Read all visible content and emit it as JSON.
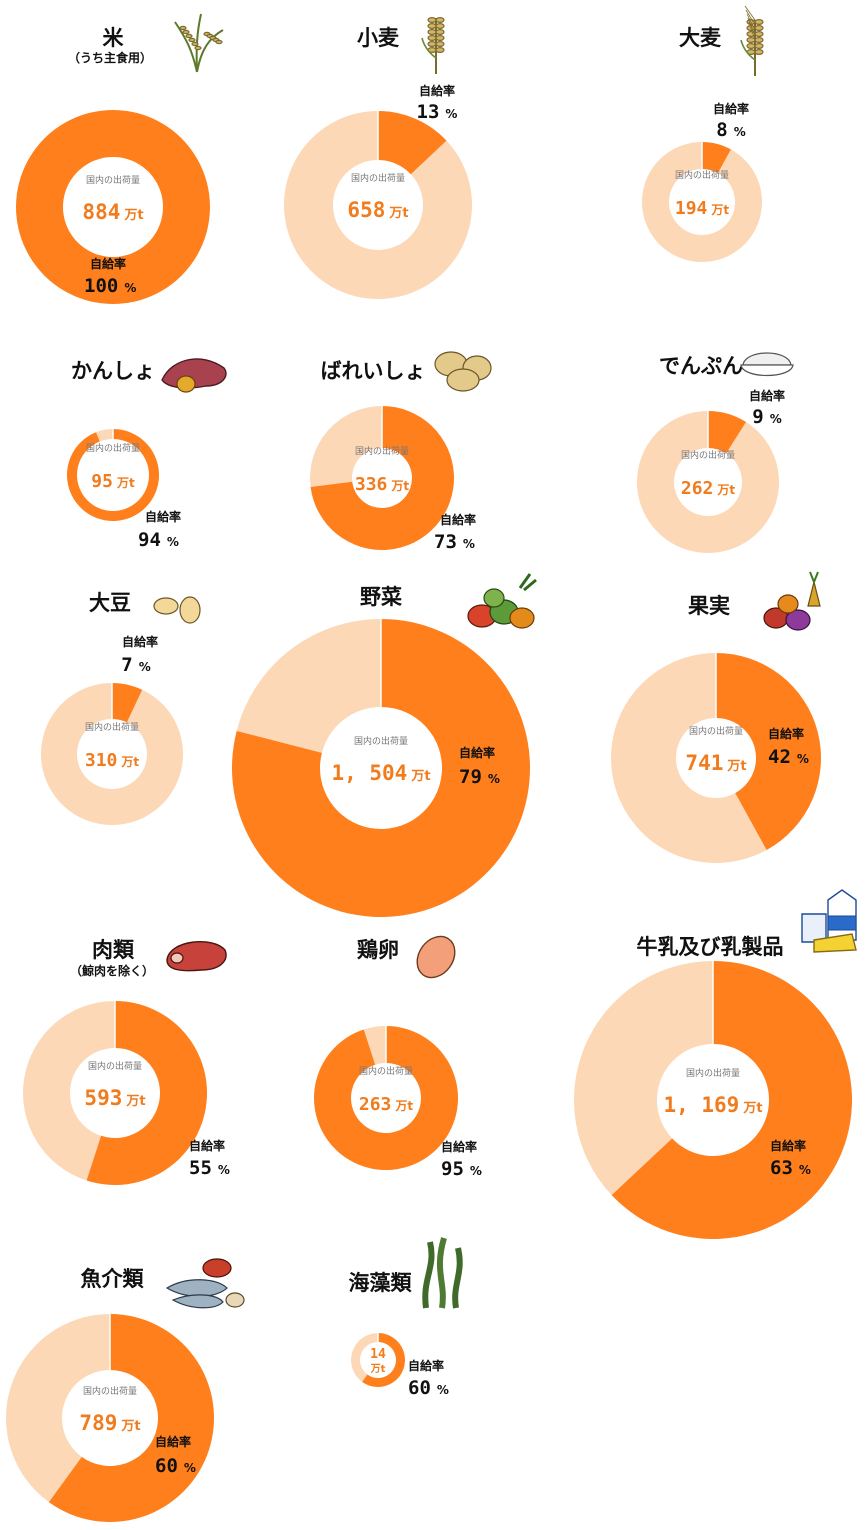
{
  "labels": {
    "shipment": "国内の出荷量",
    "rate": "自給率",
    "unit": "万t",
    "pct": "%"
  },
  "colors": {
    "self_sufficiency": "#fe7f1c",
    "import": "#fcd8b7",
    "text_orange": "#f07c1e"
  },
  "chart_data": [
    {
      "type": "pie",
      "name": "米",
      "subtitle": "（うち主食用）",
      "shipment": "884",
      "rate": 100,
      "icon": "rice-plant-icon"
    },
    {
      "type": "pie",
      "name": "小麦",
      "shipment": "658",
      "rate": 13,
      "icon": "wheat-icon"
    },
    {
      "type": "pie",
      "name": "大麦",
      "shipment": "194",
      "rate": 8,
      "icon": "barley-icon"
    },
    {
      "type": "pie",
      "name": "かんしょ",
      "shipment": "95",
      "rate": 94,
      "icon": "sweet-potato-icon"
    },
    {
      "type": "pie",
      "name": "ばれいしょ",
      "shipment": "336",
      "rate": 73,
      "icon": "potato-icon"
    },
    {
      "type": "pie",
      "name": "でんぷん",
      "shipment": "262",
      "rate": 9,
      "icon": "starch-bowl-icon"
    },
    {
      "type": "pie",
      "name": "大豆",
      "shipment": "310",
      "rate": 7,
      "icon": "soybean-icon"
    },
    {
      "type": "pie",
      "name": "野菜",
      "shipment": "1, 504",
      "rate": 79,
      "icon": "vegetables-icon"
    },
    {
      "type": "pie",
      "name": "果実",
      "shipment": "741",
      "rate": 42,
      "icon": "fruits-icon"
    },
    {
      "type": "pie",
      "name": "肉類",
      "subtitle": "（鯨肉を除く）",
      "shipment": "593",
      "rate": 55,
      "icon": "meat-icon"
    },
    {
      "type": "pie",
      "name": "鶏卵",
      "shipment": "263",
      "rate": 95,
      "icon": "egg-icon"
    },
    {
      "type": "pie",
      "name": "牛乳及び乳製品",
      "shipment": "1, 169",
      "rate": 63,
      "icon": "dairy-icon"
    },
    {
      "type": "pie",
      "name": "魚介類",
      "shipment": "789",
      "rate": 60,
      "icon": "seafood-icon"
    },
    {
      "type": "pie",
      "name": "海藻類",
      "shipment": "14",
      "rate": 60,
      "icon": "seaweed-icon"
    }
  ]
}
